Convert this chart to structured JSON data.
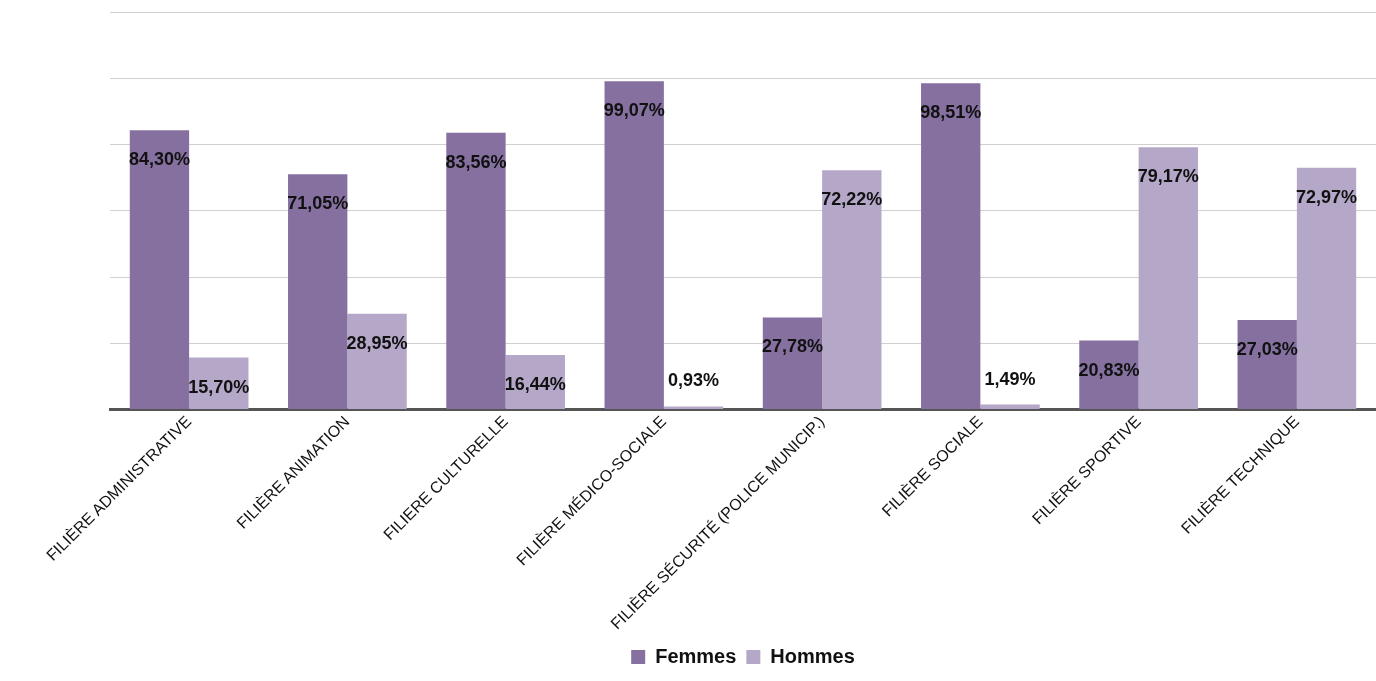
{
  "chart_data": {
    "type": "bar",
    "categories": [
      "FILIÈRE ADMINISTRATIVE",
      "FILIÈRE ANIMATION",
      "FILIERE CULTURELLE",
      "FILIÈRE MÉDICO-SOCIALE",
      "FILIÈRE SÉCURITÉ (POLICE MUNICIP.)",
      "FILIÈRE SOCIALE",
      "FILIÈRE SPORTIVE",
      "FILIÈRE TECHNIQUE"
    ],
    "series": [
      {
        "name": "Femmes",
        "color": "#8570a0",
        "values": [
          84.3,
          71.05,
          83.56,
          99.07,
          27.78,
          98.51,
          20.83,
          27.03
        ],
        "value_labels": [
          "84,30%",
          "71,05%",
          "83,56%",
          "99,07%",
          "27,78%",
          "98,51%",
          "20,83%",
          "27,03%"
        ]
      },
      {
        "name": "Hommes",
        "color": "#b4a7c8",
        "values": [
          15.7,
          28.95,
          16.44,
          0.93,
          72.22,
          1.49,
          79.17,
          72.97
        ],
        "value_labels": [
          "15,70%",
          "28,95%",
          "16,44%",
          "0,93%",
          "72,22%",
          "1,49%",
          "79,17%",
          "72,97%"
        ]
      }
    ],
    "ylim": [
      0,
      120
    ],
    "yticks": [
      {
        "value": 0,
        "label": null
      },
      {
        "value": 20,
        "label": null
      },
      {
        "value": 40,
        "label": null
      },
      {
        "value": 60,
        "label": null
      },
      {
        "value": 80,
        "label": null
      },
      {
        "value": 100,
        "label": null
      },
      {
        "value": 120,
        "label": null
      }
    ],
    "tick_labels": "x",
    "grid": "y",
    "legend": "bottom"
  }
}
